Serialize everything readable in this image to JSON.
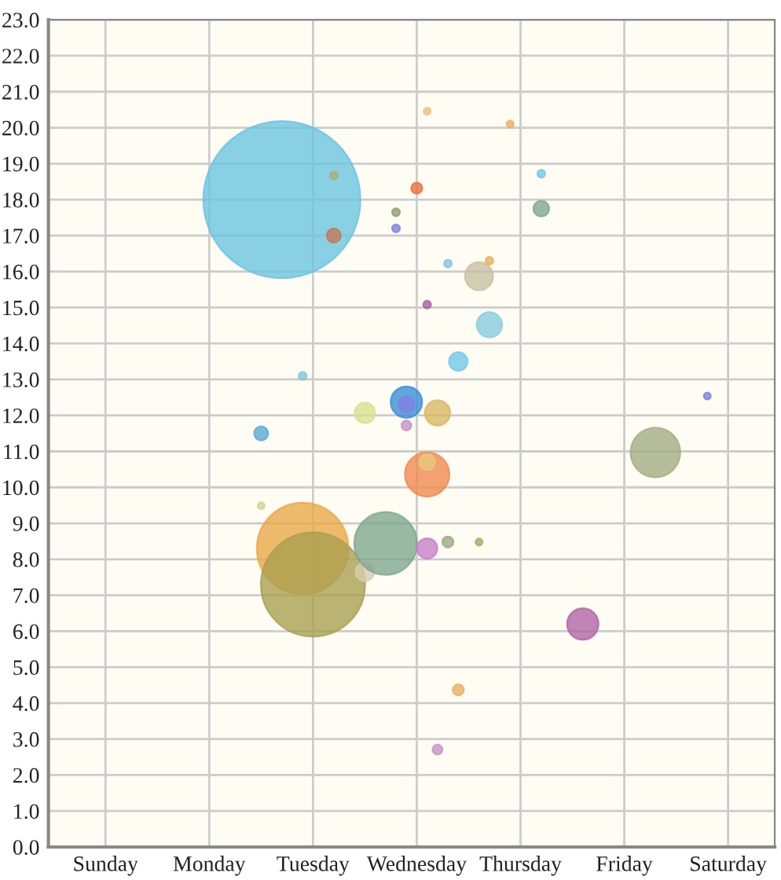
{
  "chart_data": {
    "type": "bubble",
    "categories": [
      null,
      null,
      null,
      null,
      null,
      "Sunday",
      null,
      null,
      null,
      null,
      null,
      null,
      null,
      null,
      null,
      "Monday",
      null,
      null,
      null,
      null,
      null,
      null,
      null,
      null,
      null,
      "Tuesday",
      null,
      null,
      null,
      null,
      null,
      null,
      null,
      null,
      null,
      "Wednesday",
      null,
      null,
      null,
      null,
      null,
      null,
      null,
      null,
      null,
      "Thursday",
      null,
      null,
      null,
      null,
      null,
      null,
      null,
      null,
      null,
      "Friday",
      null,
      null,
      null,
      null,
      null,
      null,
      null,
      null,
      null,
      "Saturday",
      null,
      null,
      null,
      null
    ],
    "ylim": [
      0,
      23
    ],
    "yticks": [
      {
        "value": 0,
        "label": "0.0"
      },
      {
        "value": 1,
        "label": "1.0"
      },
      {
        "value": 2,
        "label": "2.0"
      },
      {
        "value": 3,
        "label": "3.0"
      },
      {
        "value": 4,
        "label": "4.0"
      },
      {
        "value": 5,
        "label": "5.0"
      },
      {
        "value": 6,
        "label": "6.0"
      },
      {
        "value": 7,
        "label": "7.0"
      },
      {
        "value": 8,
        "label": "8.0"
      },
      {
        "value": 9,
        "label": "9.0"
      },
      {
        "value": 10,
        "label": "10.0"
      },
      {
        "value": 11,
        "label": "11.0"
      },
      {
        "value": 12,
        "label": "12.0"
      },
      {
        "value": 13,
        "label": "13.0"
      },
      {
        "value": 14,
        "label": "14.0"
      },
      {
        "value": 15,
        "label": "15.0"
      },
      {
        "value": 16,
        "label": "16.0"
      },
      {
        "value": 17,
        "label": "17.0"
      },
      {
        "value": 18,
        "label": "18.0"
      },
      {
        "value": 19,
        "label": "19.0"
      },
      {
        "value": 20,
        "label": "20.0"
      },
      {
        "value": 21,
        "label": "21.0"
      },
      {
        "value": 22,
        "label": "22.0"
      },
      {
        "value": 23,
        "label": "23.0"
      }
    ],
    "grid": true,
    "series": [
      {
        "values": [
          null,
          null,
          null,
          null,
          null,
          null,
          null,
          null,
          null,
          null,
          null,
          null,
          null,
          null,
          null,
          null,
          null,
          null,
          null,
          null,
          11.5,
          null,
          18.0,
          null,
          8.3,
          7.3,
          null,
          17.0,
          null,
          null,
          7.65,
          null,
          8.44,
          17.65,
          12.37,
          18.32,
          10.36,
          2.71,
          8.48,
          4.37,
          null,
          8.48,
          14.52,
          null,
          20.1,
          null,
          null,
          17.75,
          null,
          null,
          null,
          6.2,
          null,
          null,
          null,
          null,
          null,
          null,
          10.97,
          null,
          null,
          null,
          null,
          12.54,
          null,
          null,
          null,
          null,
          null,
          null
        ],
        "sizes": [
          null,
          null,
          null,
          null,
          null,
          null,
          null,
          null,
          null,
          null,
          null,
          null,
          null,
          null,
          null,
          null,
          null,
          null,
          null,
          null,
          0.008,
          null,
          1,
          null,
          0.34,
          0.44,
          null,
          0.008,
          null,
          null,
          0.014,
          null,
          0.16,
          0.0025,
          0.04,
          0.005,
          0.08,
          0.004,
          0.005,
          0.005,
          null,
          0.002,
          0.026,
          null,
          0.002,
          null,
          null,
          0.01,
          null,
          null,
          null,
          0.04,
          null,
          null,
          null,
          null,
          null,
          null,
          0.1,
          null,
          null,
          null,
          null,
          0.002,
          null,
          null,
          null,
          null,
          null,
          null
        ],
        "colors": [
          null,
          null,
          null,
          null,
          null,
          null,
          null,
          null,
          null,
          null,
          null,
          null,
          null,
          null,
          null,
          null,
          null,
          null,
          null,
          null,
          "#5ba8d8",
          null,
          "#6cc4e0",
          null,
          "#e8a94a",
          "#a9a050",
          null,
          "#c87850",
          null,
          null,
          "#d8ccb0",
          null,
          "#7fa88e",
          "#90a070",
          "#3a8ed8",
          "#e87040",
          "#f08a50",
          "#c890c8",
          "#9aaa88",
          "#e8b060",
          null,
          "#b0a860",
          "#88cce0",
          null,
          "#e8b060",
          null,
          null,
          "#7fa88e",
          null,
          null,
          null,
          "#b065a8",
          null,
          null,
          null,
          null,
          null,
          null,
          "#a4ad82",
          null,
          null,
          null,
          null,
          "#8080e0",
          null,
          null,
          null,
          null,
          null,
          null
        ]
      },
      {
        "values": [
          null,
          null,
          null,
          null,
          null,
          null,
          null,
          null,
          null,
          null,
          null,
          null,
          null,
          null,
          null,
          null,
          null,
          null,
          null,
          null,
          9.49,
          null,
          null,
          null,
          13.1,
          null,
          null,
          18.67,
          null,
          null,
          12.07,
          null,
          null,
          17.2,
          12.3,
          null,
          10.7,
          12.07,
          16.22,
          13.5,
          null,
          15.87,
          16.3,
          null,
          null,
          null,
          null,
          18.72,
          null,
          null,
          null,
          null,
          null,
          null,
          null,
          null,
          null,
          null,
          null,
          null,
          null,
          null,
          null,
          null,
          null,
          null,
          null,
          null,
          null,
          null
        ],
        "sizes": [
          null,
          null,
          null,
          null,
          null,
          null,
          null,
          null,
          null,
          null,
          null,
          null,
          null,
          null,
          null,
          null,
          null,
          null,
          null,
          null,
          0.002,
          null,
          null,
          null,
          0.0025,
          null,
          null,
          0.0025,
          null,
          null,
          0.017,
          null,
          null,
          0.0025,
          0.01,
          null,
          0.01,
          0.026,
          0.0025,
          0.014,
          null,
          0.032,
          0.0025,
          null,
          null,
          null,
          null,
          0.0025,
          null,
          null,
          null,
          null,
          null,
          null,
          null,
          null,
          null,
          null,
          null,
          null,
          null,
          null,
          null,
          null,
          null,
          null,
          null,
          null,
          null,
          null
        ],
        "colors": [
          null,
          null,
          null,
          null,
          null,
          null,
          null,
          null,
          null,
          null,
          null,
          null,
          null,
          null,
          null,
          null,
          null,
          null,
          null,
          null,
          "#c8d890",
          null,
          null,
          null,
          "#80c8d8",
          null,
          null,
          "#a8b070",
          null,
          null,
          "#d8e090",
          null,
          null,
          "#8080e0",
          "#8080e0",
          null,
          "#e8c87a",
          "#d8b860",
          "#80c8d8",
          "#70c8e8",
          null,
          "#c8c0a0",
          "#e8b060",
          null,
          null,
          null,
          null,
          "#70c8e8",
          null,
          null,
          null,
          null,
          null,
          null,
          null,
          null,
          null,
          null,
          null,
          null,
          null,
          null,
          null,
          null,
          null,
          null,
          null,
          null,
          null,
          null
        ]
      },
      {
        "values": [
          null,
          null,
          null,
          null,
          null,
          null,
          null,
          null,
          null,
          null,
          null,
          null,
          null,
          null,
          null,
          null,
          null,
          null,
          null,
          null,
          null,
          null,
          null,
          null,
          null,
          null,
          null,
          null,
          null,
          null,
          null,
          null,
          null,
          null,
          11.72,
          null,
          8.3,
          null,
          null,
          null,
          null,
          null,
          null,
          null,
          null,
          null,
          null,
          null,
          null,
          null,
          null,
          null,
          null,
          null,
          null,
          null,
          null,
          null,
          null,
          null,
          null,
          null,
          null,
          null,
          null,
          null,
          null,
          null,
          null,
          null
        ],
        "sizes": [
          null,
          null,
          null,
          null,
          null,
          null,
          null,
          null,
          null,
          null,
          null,
          null,
          null,
          null,
          null,
          null,
          null,
          null,
          null,
          null,
          null,
          null,
          null,
          null,
          null,
          null,
          null,
          null,
          null,
          null,
          null,
          null,
          null,
          null,
          0.004,
          null,
          0.017,
          null,
          null,
          null,
          null,
          null,
          null,
          null,
          null,
          null,
          null,
          null,
          null,
          null,
          null,
          null,
          null,
          null,
          null,
          null,
          null,
          null,
          null,
          null,
          null,
          null,
          null,
          null,
          null,
          null,
          null,
          null,
          null,
          null
        ],
        "colors": [
          null,
          null,
          null,
          null,
          null,
          null,
          null,
          null,
          null,
          null,
          null,
          null,
          null,
          null,
          null,
          null,
          null,
          null,
          null,
          null,
          null,
          null,
          null,
          null,
          null,
          null,
          null,
          null,
          null,
          null,
          null,
          null,
          null,
          null,
          "#c890c8",
          null,
          "#c880c8",
          null,
          null,
          null,
          null,
          null,
          null,
          null,
          null,
          null,
          null,
          null,
          null,
          null,
          null,
          null,
          null,
          null,
          null,
          null,
          null,
          null,
          null,
          null,
          null,
          null,
          null,
          null,
          null,
          null,
          null,
          null,
          null,
          null
        ]
      },
      {
        "values": [
          null,
          null,
          null,
          null,
          null,
          null,
          null,
          null,
          null,
          null,
          null,
          null,
          null,
          null,
          null,
          null,
          null,
          null,
          null,
          null,
          null,
          null,
          null,
          null,
          null,
          null,
          null,
          null,
          null,
          null,
          null,
          null,
          null,
          null,
          null,
          null,
          15.08,
          null,
          null,
          null,
          null,
          null,
          null,
          null,
          null,
          null,
          null,
          null,
          null,
          null,
          null,
          null,
          null,
          null,
          null,
          null,
          null,
          null,
          null,
          null,
          null,
          null,
          null,
          null,
          null,
          null,
          null,
          null,
          null,
          null
        ],
        "sizes": [
          null,
          null,
          null,
          null,
          null,
          null,
          null,
          null,
          null,
          null,
          null,
          null,
          null,
          null,
          null,
          null,
          null,
          null,
          null,
          null,
          null,
          null,
          null,
          null,
          null,
          null,
          null,
          null,
          null,
          null,
          null,
          null,
          null,
          null,
          null,
          null,
          0.0025,
          null,
          null,
          null,
          null,
          null,
          null,
          null,
          null,
          null,
          null,
          null,
          null,
          null,
          null,
          null,
          null,
          null,
          null,
          null,
          null,
          null,
          null,
          null,
          null,
          null,
          null,
          null,
          null,
          null,
          null,
          null,
          null,
          null
        ],
        "colors": [
          null,
          null,
          null,
          null,
          null,
          null,
          null,
          null,
          null,
          null,
          null,
          null,
          null,
          null,
          null,
          null,
          null,
          null,
          null,
          null,
          null,
          null,
          null,
          null,
          null,
          null,
          null,
          null,
          null,
          null,
          null,
          null,
          null,
          null,
          null,
          null,
          "#a860a8",
          null,
          null,
          null,
          null,
          null,
          null,
          null,
          null,
          null,
          null,
          null,
          null,
          null,
          null,
          null,
          null,
          null,
          null,
          null,
          null,
          null,
          null,
          null,
          null,
          null,
          null,
          null,
          null,
          null,
          null,
          null,
          null,
          null
        ]
      },
      {
        "values": [
          null,
          null,
          null,
          null,
          null,
          null,
          null,
          null,
          null,
          null,
          null,
          null,
          null,
          null,
          null,
          null,
          null,
          null,
          null,
          null,
          null,
          null,
          null,
          null,
          null,
          null,
          null,
          null,
          null,
          null,
          null,
          null,
          null,
          null,
          null,
          null,
          20.46,
          null,
          null,
          null,
          null,
          null,
          null,
          null,
          null,
          null,
          null,
          null,
          null,
          null,
          null,
          null,
          null,
          null,
          null,
          null,
          null,
          null,
          null,
          null,
          null,
          null,
          null,
          null,
          null,
          null,
          null,
          null,
          null,
          null
        ],
        "sizes": [
          null,
          null,
          null,
          null,
          null,
          null,
          null,
          null,
          null,
          null,
          null,
          null,
          null,
          null,
          null,
          null,
          null,
          null,
          null,
          null,
          null,
          null,
          null,
          null,
          null,
          null,
          null,
          null,
          null,
          null,
          null,
          null,
          null,
          null,
          null,
          null,
          0.002,
          null,
          null,
          null,
          null,
          null,
          null,
          null,
          null,
          null,
          null,
          null,
          null,
          null,
          null,
          null,
          null,
          null,
          null,
          null,
          null,
          null,
          null,
          null,
          null,
          null,
          null,
          null,
          null,
          null,
          null,
          null,
          null,
          null
        ],
        "colors": [
          null,
          null,
          null,
          null,
          null,
          null,
          null,
          null,
          null,
          null,
          null,
          null,
          null,
          null,
          null,
          null,
          null,
          null,
          null,
          null,
          null,
          null,
          null,
          null,
          null,
          null,
          null,
          null,
          null,
          null,
          null,
          null,
          null,
          null,
          null,
          null,
          "#e8c080",
          null,
          null,
          null,
          null,
          null,
          null,
          null,
          null,
          null,
          null,
          null,
          null,
          null,
          null,
          null,
          null,
          null,
          null,
          null,
          null,
          null,
          null,
          null,
          null,
          null,
          null,
          null,
          null,
          null,
          null,
          null,
          null,
          null
        ]
      }
    ]
  }
}
